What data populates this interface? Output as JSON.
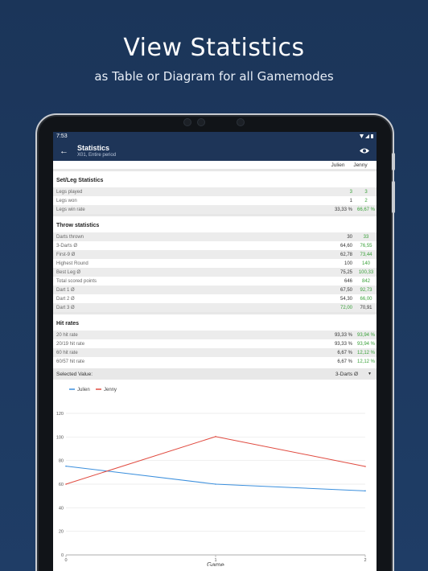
{
  "promo": {
    "title": "View Statistics",
    "subtitle": "as Table or Diagram for all Gamemodes"
  },
  "status_bar": {
    "time": "7:53"
  },
  "app_bar": {
    "title": "Statistics",
    "subtitle": "X01, Entire period"
  },
  "columns": [
    "Julien",
    "Jenny"
  ],
  "sections": [
    {
      "title": "Set/Leg Statistics",
      "rows": [
        {
          "label": "Legs played",
          "v1": "3",
          "v2": "3",
          "g1": true,
          "g2": true
        },
        {
          "label": "Legs won",
          "v1": "1",
          "v2": "2",
          "g1": false,
          "g2": true
        },
        {
          "label": "Legs win rate",
          "v1": "33,33 %",
          "v2": "66,67 %",
          "g1": false,
          "g2": true
        }
      ]
    },
    {
      "title": "Throw statistics",
      "rows": [
        {
          "label": "Darts thrown",
          "v1": "30",
          "v2": "33",
          "g1": false,
          "g2": true
        },
        {
          "label": "3-Darts Ø",
          "v1": "64,60",
          "v2": "76,55",
          "g1": false,
          "g2": true
        },
        {
          "label": "First-9 Ø",
          "v1": "62,78",
          "v2": "73,44",
          "g1": false,
          "g2": true
        },
        {
          "label": "Highest Round",
          "v1": "100",
          "v2": "140",
          "g1": false,
          "g2": true
        },
        {
          "label": "Best Leg Ø",
          "v1": "75,25",
          "v2": "100,33",
          "g1": false,
          "g2": true
        },
        {
          "label": "Total scored points",
          "v1": "646",
          "v2": "842",
          "g1": false,
          "g2": true
        },
        {
          "label": "Dart 1 Ø",
          "v1": "67,50",
          "v2": "92,73",
          "g1": false,
          "g2": true
        },
        {
          "label": "Dart 2 Ø",
          "v1": "54,30",
          "v2": "66,00",
          "g1": false,
          "g2": true
        },
        {
          "label": "Dart 3 Ø",
          "v1": "72,00",
          "v2": "70,91",
          "g1": true,
          "g2": false
        }
      ]
    },
    {
      "title": "Hit rates",
      "rows": [
        {
          "label": "20 hit rate",
          "v1": "93,33 %",
          "v2": "93,94 %",
          "g1": false,
          "g2": true
        },
        {
          "label": "20/19 hit rate",
          "v1": "93,33 %",
          "v2": "93,94 %",
          "g1": false,
          "g2": true
        },
        {
          "label": "60 hit rate",
          "v1": "6,67 %",
          "v2": "12,12 %",
          "g1": false,
          "g2": true
        },
        {
          "label": "60/57 hit rate",
          "v1": "6,67 %",
          "v2": "12,12 %",
          "g1": false,
          "g2": true
        }
      ]
    }
  ],
  "selector": {
    "label": "Selected Value:",
    "value": "3-Darts Ø"
  },
  "colors": {
    "julien": "#3b8fdd",
    "jenny": "#e04a3f",
    "green": "#3aa13a",
    "header": "#1e3558"
  },
  "chart_data": {
    "type": "line",
    "x": [
      0,
      1,
      2
    ],
    "xlabel": "Game",
    "ylabel": "",
    "ylim": [
      0,
      120
    ],
    "yticks": [
      0,
      20,
      40,
      60,
      80,
      100,
      120
    ],
    "series": [
      {
        "name": "Julien",
        "values": [
          75.25,
          60,
          54.3
        ]
      },
      {
        "name": "Jenny",
        "values": [
          60,
          100.33,
          75
        ]
      }
    ],
    "legend": "top-left",
    "grid": true
  }
}
